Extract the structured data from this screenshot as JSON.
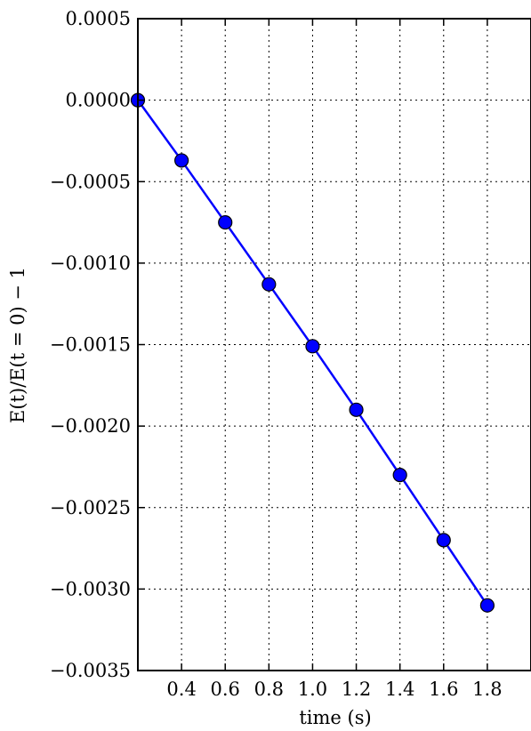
{
  "chart_data": {
    "type": "line",
    "xlabel": "time (s)",
    "ylabel": "E(t)/E(t = 0) − 1",
    "xlim": [
      0.2,
      2.0
    ],
    "ylim": [
      -0.0035,
      0.0005
    ],
    "x_ticks": [
      0.4,
      0.6,
      0.8,
      1.0,
      1.2,
      1.4,
      1.6,
      1.8
    ],
    "x_tick_labels": [
      "0.4",
      "0.6",
      "0.8",
      "1.0",
      "1.2",
      "1.4",
      "1.6",
      "1.8"
    ],
    "y_ticks": [
      0.0005,
      0.0,
      -0.0005,
      -0.001,
      -0.0015,
      -0.002,
      -0.0025,
      -0.003,
      -0.0035
    ],
    "y_tick_labels": [
      "0.0005",
      "0.0000",
      "−0.0005",
      "−0.0010",
      "−0.0015",
      "−0.0020",
      "−0.0025",
      "−0.0030",
      "−0.0035"
    ],
    "grid": true,
    "series": [
      {
        "x": [
          0.2,
          0.4,
          0.6,
          0.8,
          1.0,
          1.2,
          1.4,
          1.6,
          1.8
        ],
        "y": [
          0.0,
          -0.00037,
          -0.00075,
          -0.00113,
          -0.00151,
          -0.0019,
          -0.0023,
          -0.0027,
          -0.0031
        ],
        "color": "#0000ff",
        "marker": "circle"
      }
    ]
  }
}
